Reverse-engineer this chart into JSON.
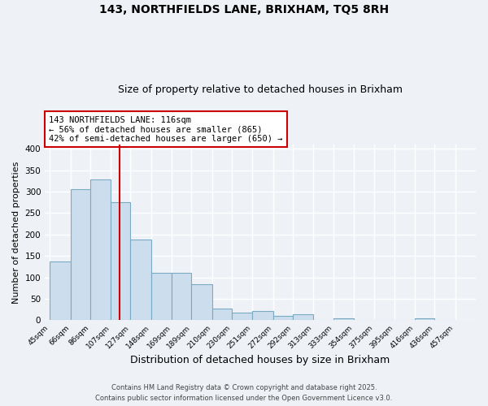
{
  "title": "143, NORTHFIELDS LANE, BRIXHAM, TQ5 8RH",
  "subtitle": "Size of property relative to detached houses in Brixham",
  "xlabel": "Distribution of detached houses by size in Brixham",
  "ylabel": "Number of detached properties",
  "bar_left_edges": [
    45,
    66,
    86,
    107,
    127,
    148,
    169,
    189,
    210,
    230,
    251,
    272,
    292,
    313,
    333,
    354,
    375,
    395,
    416,
    436
  ],
  "bar_widths": [
    21,
    20,
    21,
    20,
    21,
    21,
    20,
    21,
    20,
    21,
    21,
    20,
    21,
    20,
    21,
    21,
    20,
    21,
    20,
    21
  ],
  "bar_heights": [
    138,
    305,
    328,
    275,
    188,
    110,
    110,
    85,
    27,
    18,
    22,
    10,
    15,
    0,
    5,
    0,
    0,
    0,
    4,
    0
  ],
  "bar_facecolor": "#ccdded",
  "bar_edgecolor": "#7aaac4",
  "property_line_x": 116,
  "property_line_color": "#cc0000",
  "annotation_text": "143 NORTHFIELDS LANE: 116sqm\n← 56% of detached houses are smaller (865)\n42% of semi-detached houses are larger (650) →",
  "annotation_box_edgecolor": "#cc0000",
  "annotation_box_facecolor": "#ffffff",
  "ylim": [
    0,
    410
  ],
  "yticks": [
    0,
    50,
    100,
    150,
    200,
    250,
    300,
    350,
    400
  ],
  "tick_labels": [
    "45sqm",
    "66sqm",
    "86sqm",
    "107sqm",
    "127sqm",
    "148sqm",
    "169sqm",
    "189sqm",
    "210sqm",
    "230sqm",
    "251sqm",
    "272sqm",
    "292sqm",
    "313sqm",
    "333sqm",
    "354sqm",
    "375sqm",
    "395sqm",
    "416sqm",
    "436sqm",
    "457sqm"
  ],
  "tick_positions": [
    45,
    66,
    86,
    107,
    127,
    148,
    169,
    189,
    210,
    230,
    251,
    272,
    292,
    313,
    333,
    354,
    375,
    395,
    416,
    436,
    457
  ],
  "xlim": [
    40,
    478
  ],
  "background_color": "#eef2f7",
  "grid_color": "#ffffff",
  "footer_line1": "Contains HM Land Registry data © Crown copyright and database right 2025.",
  "footer_line2": "Contains public sector information licensed under the Open Government Licence v3.0.",
  "title_fontsize": 10,
  "subtitle_fontsize": 9,
  "xlabel_fontsize": 9,
  "ylabel_fontsize": 8,
  "annotation_fontsize": 7.5
}
